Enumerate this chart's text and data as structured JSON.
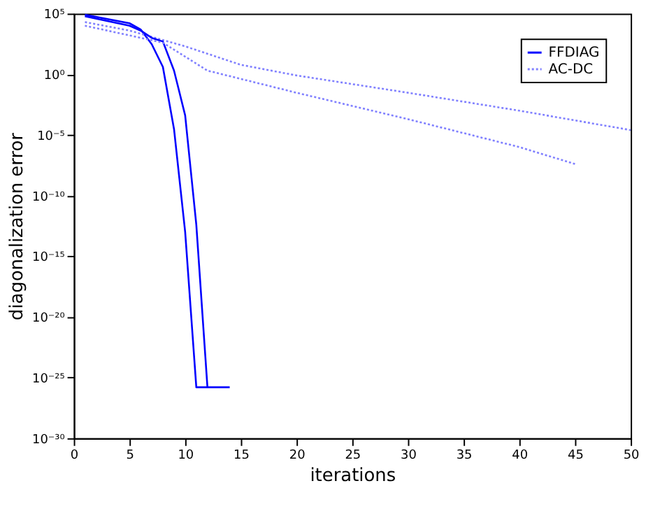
{
  "chart_data": {
    "type": "line",
    "xlabel": "iterations",
    "ylabel": "diagonalization error",
    "log": true,
    "legend": "top right",
    "xlim": [
      0,
      50
    ],
    "xticks": [
      0,
      5,
      10,
      15,
      20,
      25,
      30,
      35,
      40,
      45,
      50
    ],
    "ylim": [
      1e-30,
      100000.0
    ],
    "yticks": [
      {
        "value": 1e-30,
        "label": "10⁻³⁰"
      },
      {
        "value": 1e-25,
        "label": "10⁻²⁵"
      },
      {
        "value": 1e-20,
        "label": "10⁻²⁰"
      },
      {
        "value": 1e-15,
        "label": "10⁻¹⁵"
      },
      {
        "value": 1e-10,
        "label": "10⁻¹⁰"
      },
      {
        "value": 1e-05,
        "label": "10⁻⁵"
      },
      {
        "value": 1,
        "label": "10⁰"
      },
      {
        "value": 100000.0,
        "label": "10⁵"
      }
    ],
    "series": [
      {
        "name": "FFDIAG",
        "color": "#0000ff",
        "line_style": "solid",
        "x": [
          1,
          5,
          6,
          7,
          8,
          9,
          10,
          11,
          12,
          13,
          14
        ],
        "values": [
          80000.0,
          16000.0,
          5000.0,
          300.0,
          4,
          3e-05,
          1e-13,
          1.6e-26,
          1.6e-26,
          1.6e-26,
          1.6e-26
        ]
      },
      {
        "color": "#0000ff",
        "line_style": "solid",
        "x": [
          1,
          5,
          6,
          7,
          8,
          9,
          10,
          11,
          12
        ],
        "values": [
          60000.0,
          10000.0,
          4000.0,
          1000.0,
          500.0,
          2,
          0.0004,
          4e-13,
          1.6e-26
        ]
      },
      {
        "name": "AC-DC",
        "color": "#8080ff",
        "line_style": "dotted",
        "x": [
          1,
          5,
          10,
          15,
          20,
          30,
          40,
          50
        ],
        "values": [
          20000.0,
          4000.0,
          200.0,
          6,
          0.8,
          0.03,
          0.001,
          2.5e-05
        ]
      },
      {
        "color": "#8080ff",
        "line_style": "dotted",
        "x": [
          1,
          5,
          8,
          12,
          20,
          30,
          40,
          45
        ],
        "values": [
          10000.0,
          1600.0,
          400.0,
          2,
          0.03,
          0.0002,
          1e-06,
          4e-08
        ]
      }
    ]
  }
}
